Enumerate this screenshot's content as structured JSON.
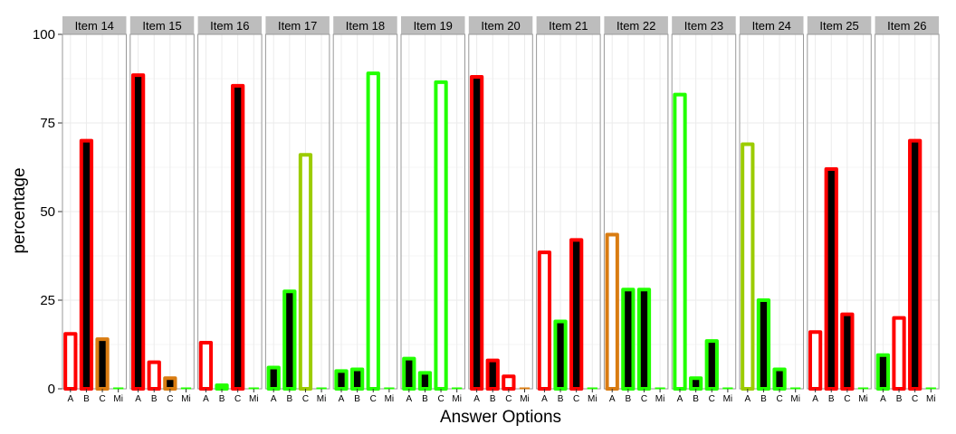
{
  "chart_data": {
    "type": "bar",
    "title": "",
    "xlabel": "Answer Options",
    "ylabel": "percentage",
    "ylim": [
      0,
      100
    ],
    "yticks": [
      0,
      25,
      50,
      75,
      100
    ],
    "grid": true,
    "categories": [
      "A",
      "B",
      "C",
      "Mi"
    ],
    "colors": {
      "red": "#ff0000",
      "orange": "#d97c12",
      "yellowgreen": "#9ccc00",
      "green": "#22ff00",
      "key_fill": "#000000",
      "strip_bg": "#bdbdbd",
      "panel_border": "#999999",
      "grid": "#ebebeb"
    },
    "panels": [
      {
        "label": "Item 14",
        "values": [
          15.5,
          70,
          14,
          0
        ],
        "colors": [
          "red",
          "red",
          "orange",
          "green"
        ],
        "key": [
          false,
          true,
          true,
          false
        ]
      },
      {
        "label": "Item 15",
        "values": [
          88.5,
          7.5,
          3,
          0
        ],
        "colors": [
          "red",
          "red",
          "orange",
          "green"
        ],
        "key": [
          true,
          false,
          true,
          false
        ]
      },
      {
        "label": "Item 16",
        "values": [
          13,
          1,
          85.5,
          0
        ],
        "colors": [
          "red",
          "green",
          "red",
          "green"
        ],
        "key": [
          false,
          false,
          true,
          false
        ]
      },
      {
        "label": "Item 17",
        "values": [
          6,
          27.5,
          66,
          0
        ],
        "colors": [
          "green",
          "green",
          "yellowgreen",
          "green"
        ],
        "key": [
          true,
          true,
          false,
          false
        ]
      },
      {
        "label": "Item 18",
        "values": [
          5,
          5.5,
          89,
          0
        ],
        "colors": [
          "green",
          "green",
          "green",
          "green"
        ],
        "key": [
          true,
          true,
          false,
          false
        ]
      },
      {
        "label": "Item 19",
        "values": [
          8.5,
          4.5,
          86.5,
          0
        ],
        "colors": [
          "green",
          "green",
          "green",
          "green"
        ],
        "key": [
          true,
          true,
          false,
          false
        ]
      },
      {
        "label": "Item 20",
        "values": [
          88,
          8,
          3.5,
          0
        ],
        "colors": [
          "red",
          "red",
          "red",
          "orange"
        ],
        "key": [
          true,
          true,
          false,
          false
        ]
      },
      {
        "label": "Item 21",
        "values": [
          38.5,
          19,
          42,
          0
        ],
        "colors": [
          "red",
          "green",
          "red",
          "green"
        ],
        "key": [
          false,
          true,
          true,
          false
        ]
      },
      {
        "label": "Item 22",
        "values": [
          43.5,
          28,
          28,
          0
        ],
        "colors": [
          "orange",
          "green",
          "green",
          "green"
        ],
        "key": [
          false,
          true,
          true,
          false
        ]
      },
      {
        "label": "Item 23",
        "values": [
          83,
          3,
          13.5,
          0
        ],
        "colors": [
          "green",
          "green",
          "green",
          "green"
        ],
        "key": [
          false,
          true,
          true,
          false
        ]
      },
      {
        "label": "Item 24",
        "values": [
          69,
          25,
          5.5,
          0
        ],
        "colors": [
          "yellowgreen",
          "green",
          "green",
          "green"
        ],
        "key": [
          false,
          true,
          true,
          false
        ]
      },
      {
        "label": "Item 25",
        "values": [
          16,
          62,
          21,
          0
        ],
        "colors": [
          "red",
          "red",
          "red",
          "green"
        ],
        "key": [
          false,
          true,
          true,
          false
        ]
      },
      {
        "label": "Item 26",
        "values": [
          9.5,
          20,
          70,
          0
        ],
        "colors": [
          "green",
          "red",
          "red",
          "green"
        ],
        "key": [
          true,
          false,
          true,
          false
        ]
      }
    ]
  }
}
